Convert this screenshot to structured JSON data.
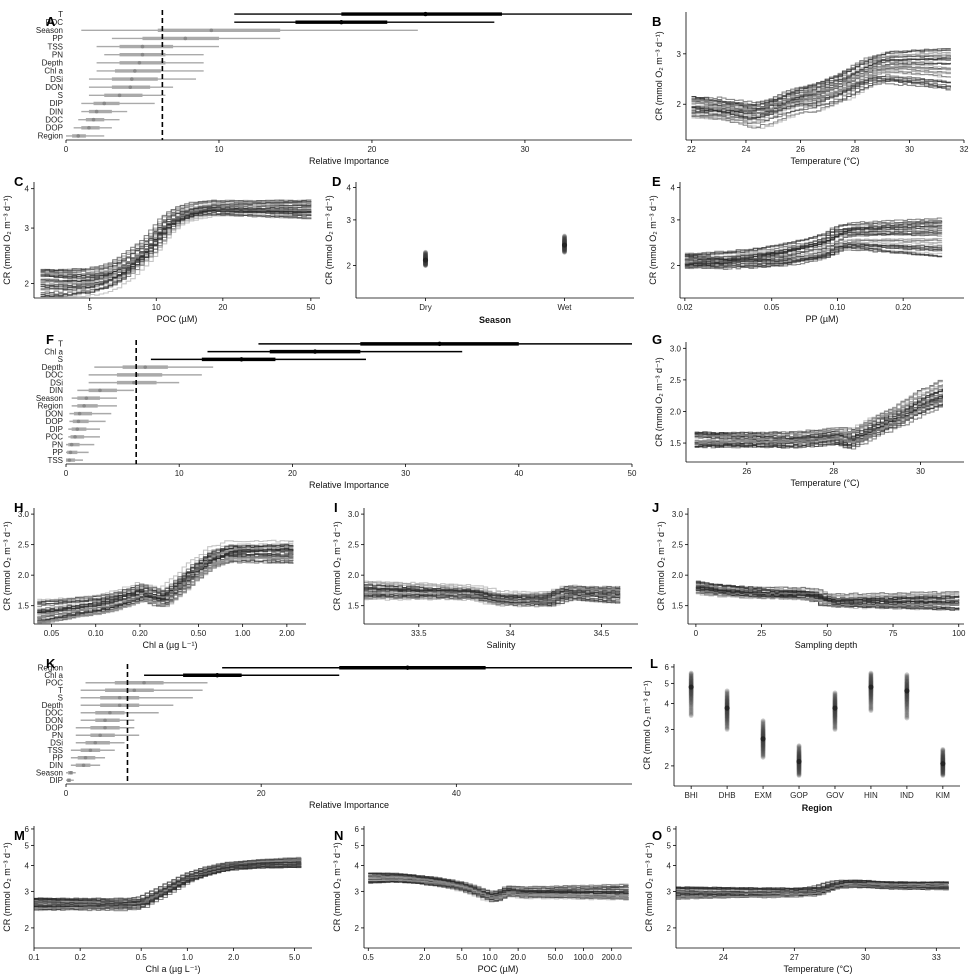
{
  "ylabel_cr": "CR (mmol O₂ m⁻³ d⁻¹)",
  "chart_data": [
    {
      "panel": "A",
      "type": "importance",
      "xlabel": "Relative Importance",
      "xlim": [
        0,
        37
      ],
      "xticks": [
        0,
        10,
        20,
        30
      ],
      "threshold": 6.3,
      "rows": [
        {
          "label": "T",
          "q1": 11,
          "median": 23.5,
          "q3": 28.5,
          "ilo": 18,
          "ihi": 28.5,
          "hi": 37,
          "sig": true
        },
        {
          "label": "POC",
          "q1": 11,
          "median": 18,
          "q3": 28,
          "ilo": 15,
          "ihi": 21,
          "hi": 28,
          "sig": true
        },
        {
          "label": "Season",
          "q1": 1,
          "median": 9.5,
          "q3": 23,
          "ilo": 6,
          "ihi": 14,
          "sig": false
        },
        {
          "label": "PP",
          "q1": 3,
          "median": 7.8,
          "q3": 14,
          "ilo": 5,
          "ihi": 10,
          "sig": false
        },
        {
          "label": "TSS",
          "q1": 2,
          "median": 5,
          "q3": 10,
          "ilo": 3.5,
          "ihi": 7,
          "sig": false
        },
        {
          "label": "PN",
          "q1": 2.5,
          "median": 5,
          "q3": 9,
          "ilo": 3.5,
          "ihi": 6.5,
          "sig": false
        },
        {
          "label": "Depth",
          "q1": 2,
          "median": 4.8,
          "q3": 9,
          "ilo": 3.5,
          "ihi": 6.5,
          "sig": false
        },
        {
          "label": "Chl a",
          "q1": 2,
          "median": 4.5,
          "q3": 9,
          "ilo": 3.2,
          "ihi": 6.2,
          "sig": false
        },
        {
          "label": "DSi",
          "q1": 1.5,
          "median": 4.3,
          "q3": 8.5,
          "ilo": 3,
          "ihi": 6,
          "sig": false
        },
        {
          "label": "DON",
          "q1": 1.5,
          "median": 4.2,
          "q3": 7,
          "ilo": 3,
          "ihi": 5.5,
          "sig": false
        },
        {
          "label": "S",
          "q1": 1.5,
          "median": 3.5,
          "q3": 6.5,
          "ilo": 2.5,
          "ihi": 5,
          "sig": false
        },
        {
          "label": "DIP",
          "q1": 1,
          "median": 2.5,
          "q3": 5.8,
          "ilo": 1.8,
          "ihi": 3.5,
          "sig": false
        },
        {
          "label": "DIN",
          "q1": 1,
          "median": 2,
          "q3": 4,
          "ilo": 1.5,
          "ihi": 3,
          "sig": false
        },
        {
          "label": "DOC",
          "q1": 0.8,
          "median": 1.8,
          "q3": 3.5,
          "ilo": 1.3,
          "ihi": 2.5,
          "sig": false
        },
        {
          "label": "DOP",
          "q1": 0.5,
          "median": 1.5,
          "q3": 3,
          "ilo": 1,
          "ihi": 2.2,
          "sig": false
        },
        {
          "label": "Region",
          "q1": 0,
          "median": 0.8,
          "q3": 2.5,
          "ilo": 0.4,
          "ihi": 1.3,
          "sig": false
        }
      ]
    },
    {
      "panel": "B",
      "type": "pdp",
      "scale": "linear",
      "xlim": [
        21.8,
        32
      ],
      "xticks": [
        22,
        24,
        26,
        28,
        30,
        32
      ],
      "ylim": [
        1.5,
        4.2
      ],
      "yticks": [
        2,
        3
      ],
      "ylog": true,
      "xlabel": "Temperature (°C)",
      "x": [
        22,
        23,
        23.8,
        24.3,
        25,
        25.5,
        26,
        26.5,
        27,
        27.5,
        28,
        28.5,
        29,
        30,
        31.5
      ],
      "y": [
        1.95,
        1.93,
        1.88,
        1.85,
        1.95,
        2.05,
        2.12,
        2.15,
        2.25,
        2.35,
        2.5,
        2.65,
        2.72,
        2.72,
        2.7
      ],
      "band": [
        0.35,
        0.9
      ]
    },
    {
      "panel": "C",
      "type": "pdp",
      "scale": "log",
      "xlim": [
        2.8,
        55
      ],
      "xticks": [
        5,
        10,
        20,
        50
      ],
      "ylim": [
        1.8,
        4.2
      ],
      "yticks": [
        2,
        3,
        4
      ],
      "ylog": true,
      "xlabel": "POC (µM)",
      "x": [
        3,
        4,
        5,
        6,
        7,
        8,
        9,
        10,
        11,
        12,
        13,
        15,
        17,
        20,
        30,
        50
      ],
      "y": [
        2.0,
        2.0,
        2.02,
        2.08,
        2.2,
        2.38,
        2.55,
        2.8,
        3.05,
        3.2,
        3.3,
        3.4,
        3.45,
        3.45,
        3.45,
        3.45
      ],
      "band": [
        0.45,
        0.5
      ]
    },
    {
      "panel": "D",
      "type": "strip",
      "ylim": [
        1.5,
        4.2
      ],
      "yticks": [
        2,
        3,
        4
      ],
      "ylog": true,
      "xlabel": "Season",
      "categories": [
        "Dry",
        "Wet"
      ],
      "points": [
        [
          2.25,
          2.1,
          2.0
        ],
        [
          2.6,
          2.4,
          2.25
        ]
      ]
    },
    {
      "panel": "E",
      "type": "pdp",
      "scale": "log",
      "xlim": [
        0.019,
        0.38
      ],
      "xticks": [
        0.02,
        0.05,
        0.1,
        0.2
      ],
      "xticklabels": [
        "0.02",
        "0.05",
        "0.10",
        "0.20"
      ],
      "ylim": [
        1.5,
        4.2
      ],
      "yticks": [
        2,
        3,
        4
      ],
      "ylog": true,
      "xlabel": "PP (µM)",
      "x": [
        0.02,
        0.03,
        0.04,
        0.05,
        0.06,
        0.07,
        0.08,
        0.09,
        0.1,
        0.11,
        0.15,
        0.2,
        0.3
      ],
      "y": [
        2.1,
        2.1,
        2.13,
        2.17,
        2.22,
        2.28,
        2.33,
        2.4,
        2.55,
        2.6,
        2.6,
        2.6,
        2.6
      ],
      "band": [
        0.3,
        0.9
      ]
    },
    {
      "panel": "F",
      "type": "importance",
      "xlabel": "Relative Importance",
      "xlim": [
        0,
        50
      ],
      "xticks": [
        0,
        10,
        20,
        30,
        40,
        50
      ],
      "threshold": 6.2,
      "rows": [
        {
          "label": "T",
          "q1": 17,
          "median": 33,
          "q3": 50,
          "ilo": 26,
          "ihi": 40,
          "hi": 50,
          "sig": true
        },
        {
          "label": "Chl a",
          "q1": 12.5,
          "median": 22,
          "q3": 35,
          "ilo": 18,
          "ihi": 26,
          "sig": true
        },
        {
          "label": "S",
          "q1": 7.5,
          "median": 15.5,
          "q3": 26.5,
          "ilo": 12,
          "ihi": 18.5,
          "sig": true
        },
        {
          "label": "Depth",
          "q1": 2.5,
          "median": 7,
          "q3": 13,
          "ilo": 5,
          "ihi": 9,
          "sig": false
        },
        {
          "label": "DOC",
          "q1": 2,
          "median": 6.3,
          "q3": 12,
          "ilo": 4.5,
          "ihi": 8.5,
          "sig": false
        },
        {
          "label": "DSi",
          "q1": 2,
          "median": 6,
          "q3": 10,
          "ilo": 4.5,
          "ihi": 8,
          "sig": false
        },
        {
          "label": "DIN",
          "q1": 1,
          "median": 3,
          "q3": 6,
          "ilo": 2,
          "ihi": 4.5,
          "sig": false
        },
        {
          "label": "Season",
          "q1": 0.5,
          "median": 1.8,
          "q3": 4.5,
          "ilo": 1,
          "ihi": 3,
          "sig": false
        },
        {
          "label": "Region",
          "q1": 0.5,
          "median": 1.6,
          "q3": 4.5,
          "ilo": 1,
          "ihi": 2.8,
          "sig": false
        },
        {
          "label": "DON",
          "q1": 0.3,
          "median": 1.2,
          "q3": 4,
          "ilo": 0.7,
          "ihi": 2.3,
          "sig": false
        },
        {
          "label": "DOP",
          "q1": 0.3,
          "median": 1.1,
          "q3": 3.5,
          "ilo": 0.6,
          "ihi": 2,
          "sig": false
        },
        {
          "label": "DIP",
          "q1": 0.2,
          "median": 1,
          "q3": 3,
          "ilo": 0.5,
          "ihi": 1.8,
          "sig": false
        },
        {
          "label": "POC",
          "q1": 0.2,
          "median": 0.8,
          "q3": 3,
          "ilo": 0.4,
          "ihi": 1.6,
          "sig": false
        },
        {
          "label": "PN",
          "q1": 0,
          "median": 0.5,
          "q3": 2.5,
          "ilo": 0.2,
          "ihi": 1.2,
          "sig": false
        },
        {
          "label": "PP",
          "q1": 0,
          "median": 0.4,
          "q3": 2,
          "ilo": 0.1,
          "ihi": 1,
          "sig": false
        },
        {
          "label": "TSS",
          "q1": 0,
          "median": 0.3,
          "q3": 1.5,
          "ilo": 0,
          "ihi": 0.8,
          "sig": false
        }
      ]
    },
    {
      "panel": "G",
      "type": "pdp",
      "scale": "linear",
      "xlim": [
        24.6,
        31
      ],
      "xticks": [
        26,
        28,
        30
      ],
      "ylim": [
        1.2,
        3.1
      ],
      "yticks": [
        1.5,
        2.0,
        2.5,
        3.0
      ],
      "ylog": false,
      "xlabel": "Temperature (°C)",
      "x": [
        24.8,
        26,
        27,
        27.5,
        28,
        28.3,
        28.6,
        29,
        29.5,
        30,
        30.5
      ],
      "y": [
        1.55,
        1.55,
        1.55,
        1.58,
        1.62,
        1.55,
        1.65,
        1.8,
        1.95,
        2.15,
        2.3
      ],
      "band": [
        0.25,
        0.4
      ]
    },
    {
      "panel": "H",
      "type": "pdp",
      "scale": "log",
      "xlim": [
        0.038,
        2.7
      ],
      "xticks": [
        0.05,
        0.1,
        0.2,
        0.5,
        1,
        2
      ],
      "xticklabels": [
        "0.05",
        "0.10",
        "0.20",
        "0.50",
        "1.00",
        "2.00"
      ],
      "ylim": [
        1.2,
        3.1
      ],
      "yticks": [
        1.5,
        2.0,
        2.5,
        3.0
      ],
      "ylog": false,
      "xlabel": "Chl a (µg L⁻¹)",
      "x": [
        0.04,
        0.07,
        0.12,
        0.2,
        0.28,
        0.35,
        0.45,
        0.6,
        0.8,
        1.2,
        2.2
      ],
      "y": [
        1.4,
        1.47,
        1.55,
        1.72,
        1.62,
        1.8,
        2.05,
        2.28,
        2.38,
        2.38,
        2.38
      ],
      "band": [
        0.4,
        0.4
      ]
    },
    {
      "panel": "I",
      "type": "pdp",
      "scale": "linear",
      "xlim": [
        33.2,
        34.7
      ],
      "xticks": [
        33.5,
        34.0,
        34.5
      ],
      "ylim": [
        1.2,
        3.1
      ],
      "yticks": [
        1.5,
        2.0,
        2.5,
        3.0
      ],
      "ylog": false,
      "xlabel": "Salinity",
      "x": [
        33.2,
        33.6,
        33.8,
        33.9,
        34.0,
        34.2,
        34.3,
        34.4,
        34.6
      ],
      "y": [
        1.75,
        1.72,
        1.7,
        1.62,
        1.6,
        1.6,
        1.72,
        1.7,
        1.68
      ],
      "band": [
        0.3,
        0.3
      ]
    },
    {
      "panel": "J",
      "type": "pdp",
      "scale": "linear",
      "xlim": [
        -3,
        102
      ],
      "xticks": [
        0,
        25,
        50,
        75,
        100
      ],
      "ylim": [
        1.2,
        3.1
      ],
      "yticks": [
        1.5,
        2.0,
        2.5,
        3.0
      ],
      "ylog": false,
      "xlabel": "Sampling depth",
      "x": [
        0,
        10,
        20,
        30,
        40,
        48,
        50,
        60,
        70,
        100
      ],
      "y": [
        1.8,
        1.75,
        1.72,
        1.7,
        1.7,
        1.65,
        1.58,
        1.58,
        1.58,
        1.58
      ],
      "band": [
        0.2,
        0.3
      ]
    },
    {
      "panel": "K",
      "type": "importance",
      "xlabel": "Relative Importance",
      "xlim": [
        0,
        58
      ],
      "xticks": [
        0,
        20,
        40
      ],
      "threshold": 6.3,
      "rows": [
        {
          "label": "Region",
          "q1": 16,
          "median": 35,
          "q3": 58,
          "ilo": 28,
          "ihi": 43,
          "hi": 58,
          "sig": true
        },
        {
          "label": "Chl a",
          "q1": 8,
          "median": 15.5,
          "q3": 28,
          "ilo": 12,
          "ihi": 18,
          "sig": true
        },
        {
          "label": "POC",
          "q1": 2,
          "median": 8,
          "q3": 14.5,
          "ilo": 5,
          "ihi": 10,
          "sig": false
        },
        {
          "label": "T",
          "q1": 1.5,
          "median": 7,
          "q3": 14,
          "ilo": 4,
          "ihi": 9,
          "sig": false
        },
        {
          "label": "S",
          "q1": 1.5,
          "median": 5.5,
          "q3": 13,
          "ilo": 3.5,
          "ihi": 7.5,
          "sig": false
        },
        {
          "label": "Depth",
          "q1": 1.5,
          "median": 5.5,
          "q3": 11,
          "ilo": 3.5,
          "ihi": 7.5,
          "sig": false
        },
        {
          "label": "DOC",
          "q1": 1.5,
          "median": 4.5,
          "q3": 9.5,
          "ilo": 3,
          "ihi": 6,
          "sig": false
        },
        {
          "label": "DON",
          "q1": 1.5,
          "median": 4,
          "q3": 7,
          "ilo": 3,
          "ihi": 5.5,
          "sig": false
        },
        {
          "label": "DOP",
          "q1": 1,
          "median": 4,
          "q3": 7,
          "ilo": 2.5,
          "ihi": 5.5,
          "sig": false
        },
        {
          "label": "PN",
          "q1": 1,
          "median": 3.5,
          "q3": 7.5,
          "ilo": 2.5,
          "ihi": 5,
          "sig": false
        },
        {
          "label": "DSi",
          "q1": 1,
          "median": 3,
          "q3": 6,
          "ilo": 2,
          "ihi": 4.5,
          "sig": false
        },
        {
          "label": "TSS",
          "q1": 0.5,
          "median": 2.5,
          "q3": 5,
          "ilo": 1.5,
          "ihi": 3.5,
          "sig": false
        },
        {
          "label": "PP",
          "q1": 0.5,
          "median": 2,
          "q3": 4,
          "ilo": 1.2,
          "ihi": 3,
          "sig": false
        },
        {
          "label": "DIN",
          "q1": 0.5,
          "median": 1.8,
          "q3": 3.5,
          "ilo": 1,
          "ihi": 2.5,
          "sig": false
        },
        {
          "label": "Season",
          "q1": 0,
          "median": 0.5,
          "q3": 1,
          "ilo": 0.2,
          "ihi": 0.7,
          "sig": false
        },
        {
          "label": "DIP",
          "q1": 0,
          "median": 0.3,
          "q3": 0.8,
          "ilo": 0.1,
          "ihi": 0.5,
          "sig": false
        }
      ]
    },
    {
      "panel": "L",
      "type": "strip",
      "ylim": [
        1.6,
        6.2
      ],
      "yticks": [
        2,
        3,
        4,
        5,
        6
      ],
      "ylog": true,
      "xlabel": "Region",
      "categories": [
        "BHI",
        "DHB",
        "EXM",
        "GOP",
        "GOV",
        "HIN",
        "IND",
        "KIM"
      ],
      "points": [
        [
          5.6,
          4.8,
          3.5
        ],
        [
          4.6,
          3.8,
          3.0
        ],
        [
          3.3,
          2.7,
          2.2
        ],
        [
          2.5,
          2.1,
          1.8
        ],
        [
          4.5,
          3.8,
          3.0
        ],
        [
          5.6,
          4.8,
          3.7
        ],
        [
          5.5,
          4.6,
          3.4
        ],
        [
          2.4,
          2.05,
          1.8
        ]
      ]
    },
    {
      "panel": "M",
      "type": "pdp",
      "scale": "log",
      "xlim": [
        0.1,
        6.5
      ],
      "xticks": [
        0.1,
        0.2,
        0.5,
        1,
        2,
        5
      ],
      "xticklabels": [
        "0.1",
        "0.2",
        "0.5",
        "1.0",
        "2.0",
        "5.0"
      ],
      "ylim": [
        1.6,
        6.2
      ],
      "yticks": [
        2,
        3,
        4,
        5,
        6
      ],
      "ylog": true,
      "xlabel": "Chl a (µg L⁻¹)",
      "x": [
        0.1,
        0.2,
        0.4,
        0.5,
        0.6,
        0.8,
        1.0,
        1.3,
        1.6,
        2.0,
        3.0,
        5.5
      ],
      "y": [
        2.6,
        2.6,
        2.6,
        2.65,
        2.85,
        3.2,
        3.5,
        3.75,
        3.9,
        4.0,
        4.1,
        4.15
      ],
      "band": [
        0.4,
        0.5
      ]
    },
    {
      "panel": "N",
      "type": "pdp",
      "scale": "log",
      "xlim": [
        0.45,
        330
      ],
      "xticks": [
        0.5,
        2,
        5,
        10,
        20,
        50,
        100,
        200
      ],
      "xticklabels": [
        "0.5",
        "2.0",
        "5.0",
        "10.0",
        "20.0",
        "50.0",
        "100.0",
        "200.0"
      ],
      "ylim": [
        1.6,
        6.2
      ],
      "yticks": [
        2,
        3,
        4,
        5,
        6
      ],
      "ylog": true,
      "xlabel": "POC (µM)",
      "x": [
        0.5,
        1,
        2,
        4,
        6,
        8,
        10,
        12,
        15,
        20,
        50,
        300
      ],
      "y": [
        3.5,
        3.5,
        3.4,
        3.25,
        3.1,
        2.95,
        2.85,
        2.9,
        3.05,
        3.0,
        3.0,
        3.0
      ],
      "band": [
        0.4,
        0.6
      ]
    },
    {
      "panel": "O",
      "type": "pdp",
      "scale": "linear",
      "xlim": [
        22,
        34
      ],
      "xticks": [
        24,
        27,
        30,
        33
      ],
      "ylim": [
        1.6,
        6.2
      ],
      "yticks": [
        2,
        3,
        4,
        5,
        6
      ],
      "ylog": true,
      "xlabel": "Temperature (°C)",
      "x": [
        22,
        24,
        26,
        27,
        28,
        28.5,
        29,
        30,
        31,
        33.5
      ],
      "y": [
        2.95,
        2.95,
        2.95,
        2.95,
        3.0,
        3.15,
        3.25,
        3.25,
        3.2,
        3.2
      ],
      "band": [
        0.4,
        0.3
      ]
    }
  ]
}
